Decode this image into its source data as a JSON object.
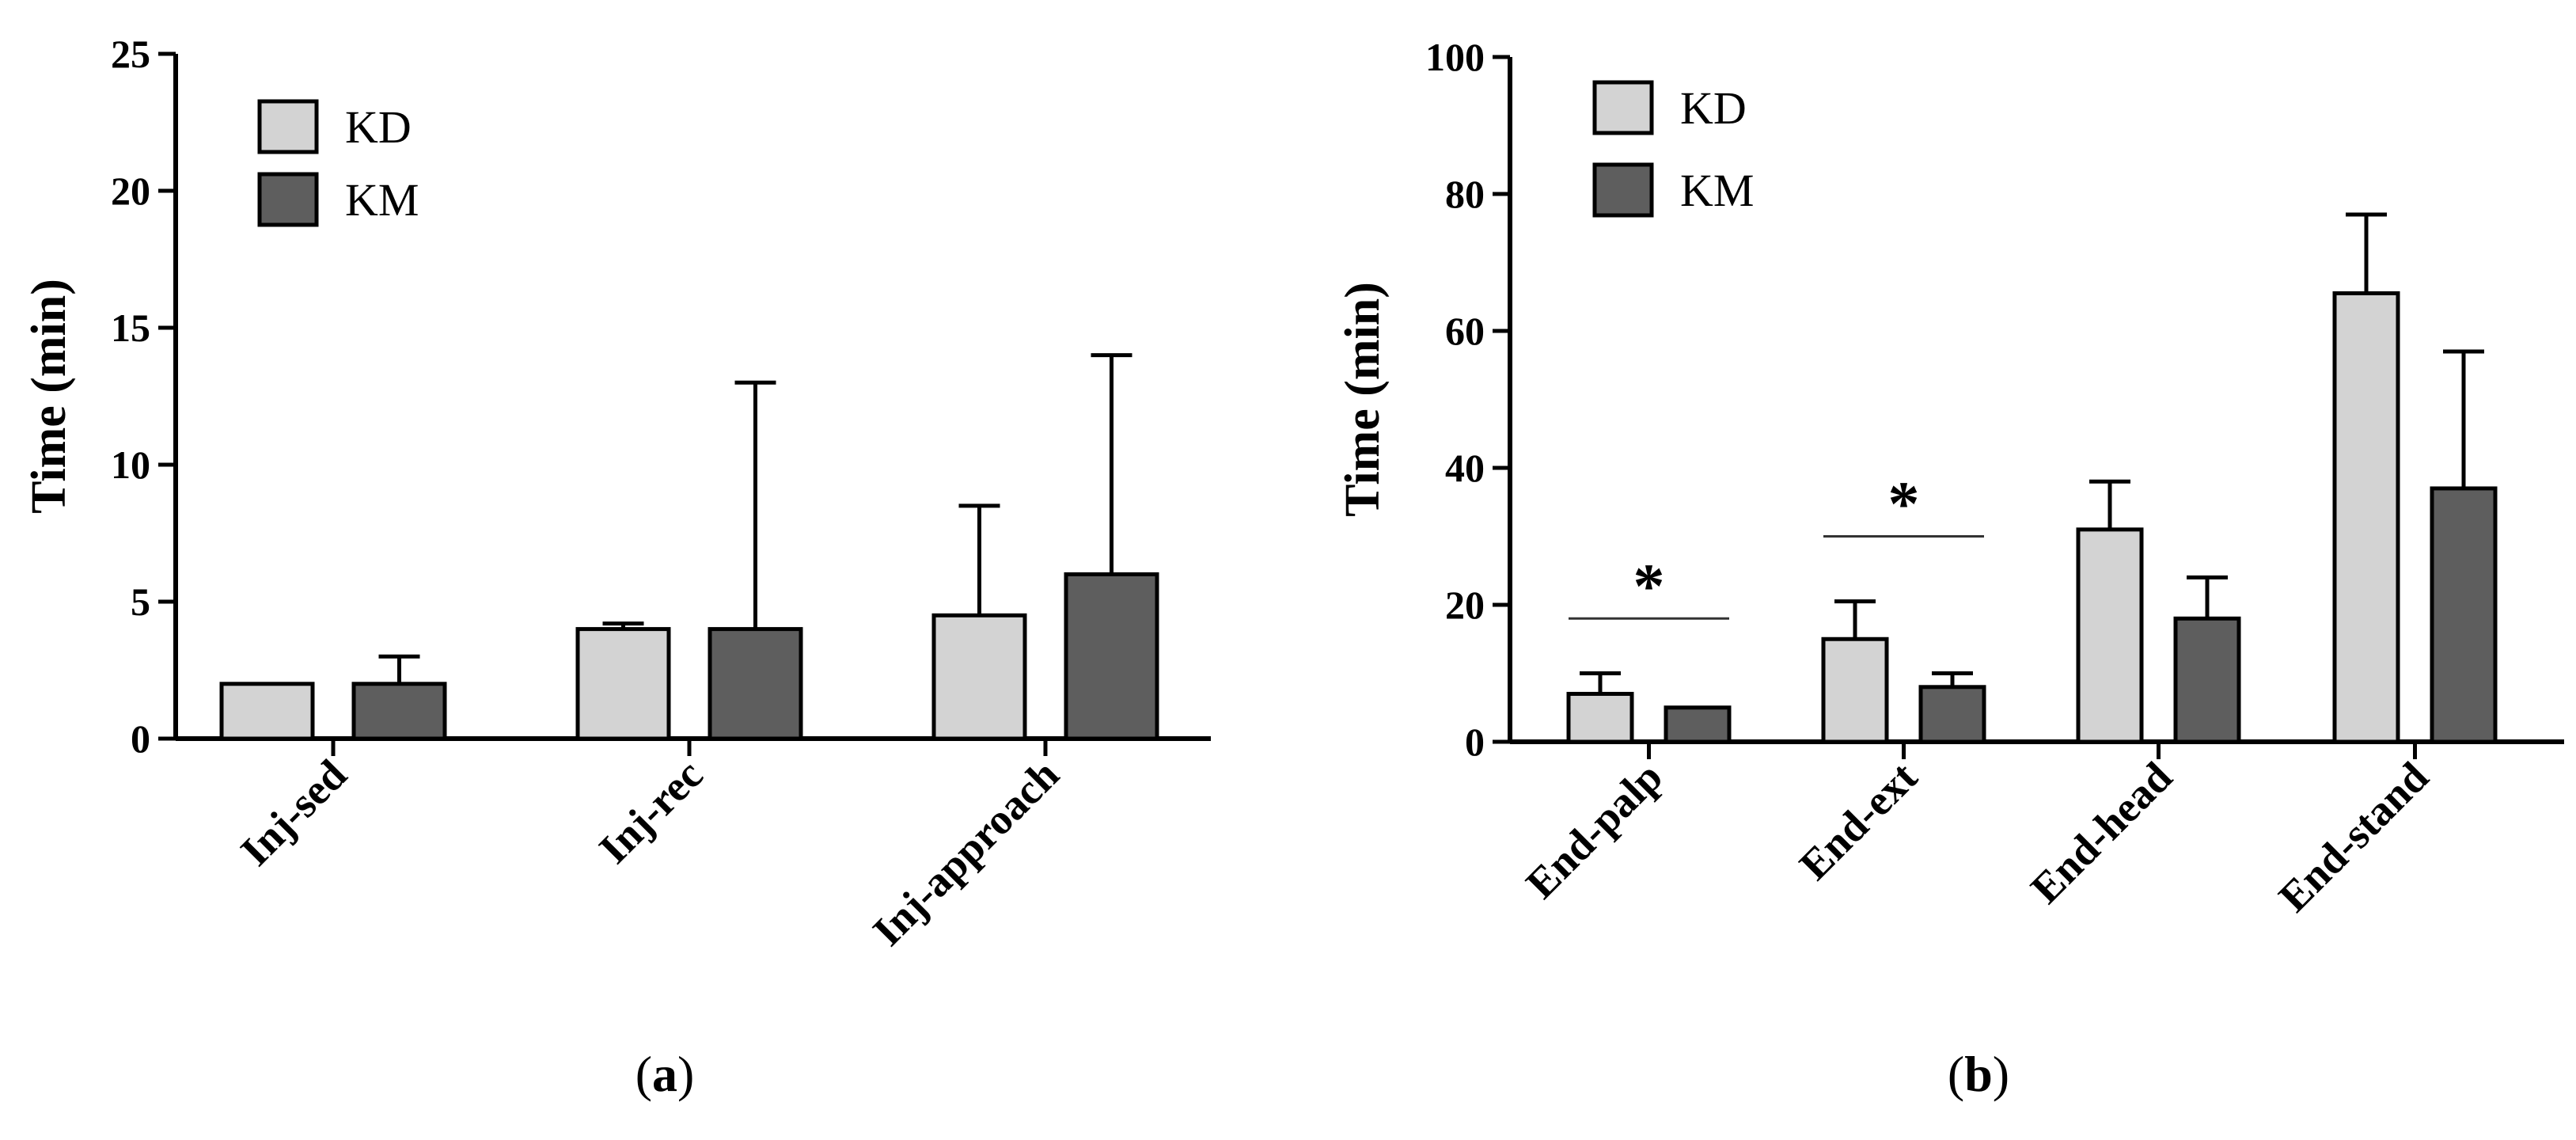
{
  "colors": {
    "kd": "#d3d3d3",
    "km": "#5e5e5e",
    "stroke": "#000000"
  },
  "chart_data": [
    {
      "id": "a",
      "type": "bar",
      "caption": {
        "open": "(",
        "letter": "a",
        "close": ")"
      },
      "ylabel": "Time (min)",
      "ylim": [
        0,
        25
      ],
      "yticks": [
        "0",
        "5",
        "10",
        "15",
        "20",
        "25"
      ],
      "categories": [
        "Inj-sed",
        "Inj-rec",
        "Inj-approach"
      ],
      "legend": [
        "KD",
        "KM"
      ],
      "series": [
        {
          "name": "KD",
          "values": [
            2,
            4,
            4.5
          ],
          "errors": [
            0,
            0.2,
            4
          ]
        },
        {
          "name": "KM",
          "values": [
            2,
            4,
            6
          ],
          "errors": [
            1,
            9,
            8
          ]
        }
      ],
      "annotations": []
    },
    {
      "id": "b",
      "type": "bar",
      "caption": {
        "open": "(",
        "letter": "b",
        "close": ")"
      },
      "ylabel": "Time (min)",
      "ylim": [
        0,
        100
      ],
      "yticks": [
        "0",
        "20",
        "40",
        "60",
        "80",
        "100"
      ],
      "categories": [
        "End-palp",
        "End-ext",
        "End-head",
        "End-stand"
      ],
      "legend": [
        "KD",
        "KM"
      ],
      "series": [
        {
          "name": "KD",
          "values": [
            7,
            15,
            31,
            65.5
          ],
          "errors": [
            3,
            5.5,
            7,
            11.5
          ]
        },
        {
          "name": "KM",
          "values": [
            5,
            8,
            18,
            37
          ],
          "errors": [
            0,
            2,
            6,
            20
          ]
        }
      ],
      "annotations": [
        {
          "category": 0,
          "label": "*",
          "y": 18
        },
        {
          "category": 1,
          "label": "*",
          "y": 30
        }
      ]
    }
  ]
}
